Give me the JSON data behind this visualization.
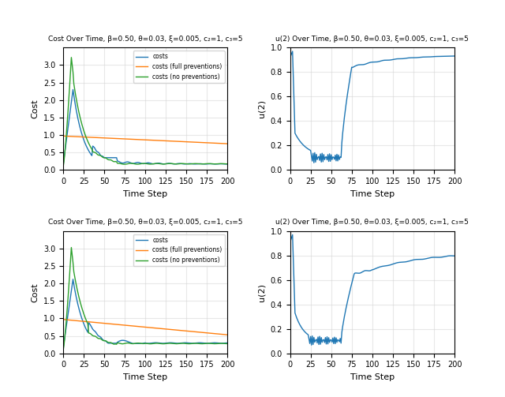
{
  "T": 200,
  "title_cost": "Cost Over Time, β=0.50, θ=0.03, ξ=0.005, c₂=1, c₃=5",
  "title_u2": "u(2) Over Time, β=0.50, θ=0.03, ξ=0.005, c₂=1, c₃=5",
  "xlabel": "Time Step",
  "ylabel_cost": "Cost",
  "ylabel_u2": "u(2)",
  "ylim_cost": [
    0,
    3.5
  ],
  "ylim_u2": [
    0.0,
    1.0
  ],
  "color_costs": "#1f77b4",
  "color_full": "#ff7f0e",
  "color_none": "#2ca02c",
  "legend_costs": "costs",
  "legend_full": "costs (full preventions)",
  "legend_none": "costs (no preventions)",
  "linewidth": 1.0,
  "grid_alpha": 0.5,
  "xticks": [
    0,
    25,
    50,
    75,
    100,
    125,
    150,
    175,
    200
  ],
  "yticks_cost": [
    0.0,
    0.5,
    1.0,
    1.5,
    2.0,
    2.5,
    3.0
  ],
  "yticks_u2": [
    0.0,
    0.2,
    0.4,
    0.6,
    0.8,
    1.0
  ]
}
